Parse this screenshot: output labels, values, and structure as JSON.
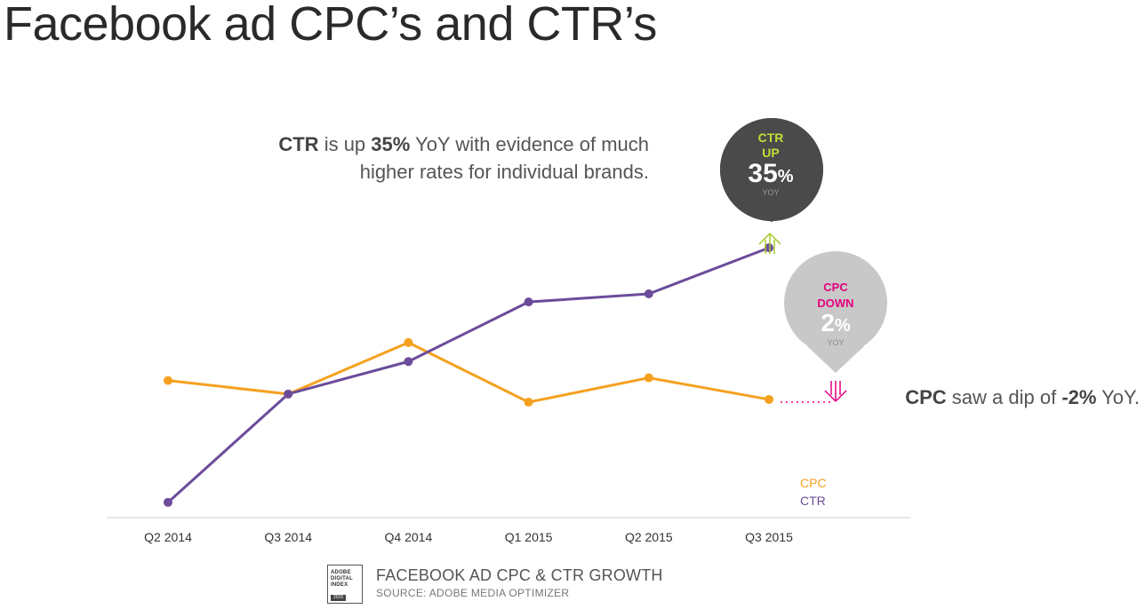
{
  "title": "Facebook ad CPC’s and CTR’s",
  "callouts": {
    "ctr": {
      "term": "CTR",
      "pre": " is up ",
      "value": "35%",
      "post": " YoY with evidence of much higher rates for individual brands."
    },
    "cpc": {
      "term": "CPC",
      "pre": " saw a dip of ",
      "value": "-2%",
      "post": " YoY."
    }
  },
  "badges": {
    "ctr": {
      "line1": "CTR",
      "line2": "UP",
      "value": "35",
      "unit": "%",
      "sub": "YOY"
    },
    "cpc": {
      "line1": "CPC",
      "line2": "DOWN",
      "value": "2",
      "unit": "%",
      "sub": "YOY"
    }
  },
  "footer": {
    "badge_lines": [
      "ADOBE",
      "DIGITAL",
      "INDEX"
    ],
    "badge_year": "2015",
    "title": "FACEBOOK AD CPC & CTR GROWTH",
    "source": "SOURCE: ADOBE MEDIA OPTIMIZER"
  },
  "colors": {
    "cpc": "#f5a11f",
    "ctr": "#6b4c9a",
    "ctr_accent": "#a6c92a",
    "cpc_accent": "#e6007e",
    "dark_badge": "#4a4a4a",
    "light_badge": "#c8c8c8",
    "axis": "#cccccc"
  },
  "chart_data": {
    "type": "line",
    "categories": [
      "Q2 2014",
      "Q3 2014",
      "Q4 2014",
      "Q1 2015",
      "Q2 2015",
      "Q3 2015"
    ],
    "series": [
      {
        "name": "CPC",
        "values": [
          48,
          43,
          62,
          40,
          49,
          41
        ],
        "color": "#f5a11f"
      },
      {
        "name": "CTR",
        "values": [
          3,
          43,
          55,
          77,
          80,
          97
        ],
        "color": "#6b4c9a"
      }
    ],
    "ylim": [
      0,
      100
    ],
    "y_axis_shown": false,
    "legend": [
      "CPC",
      "CTR"
    ],
    "legend_position": "bottom-right",
    "grid": false,
    "note": "relative index values, no y scale printed"
  }
}
